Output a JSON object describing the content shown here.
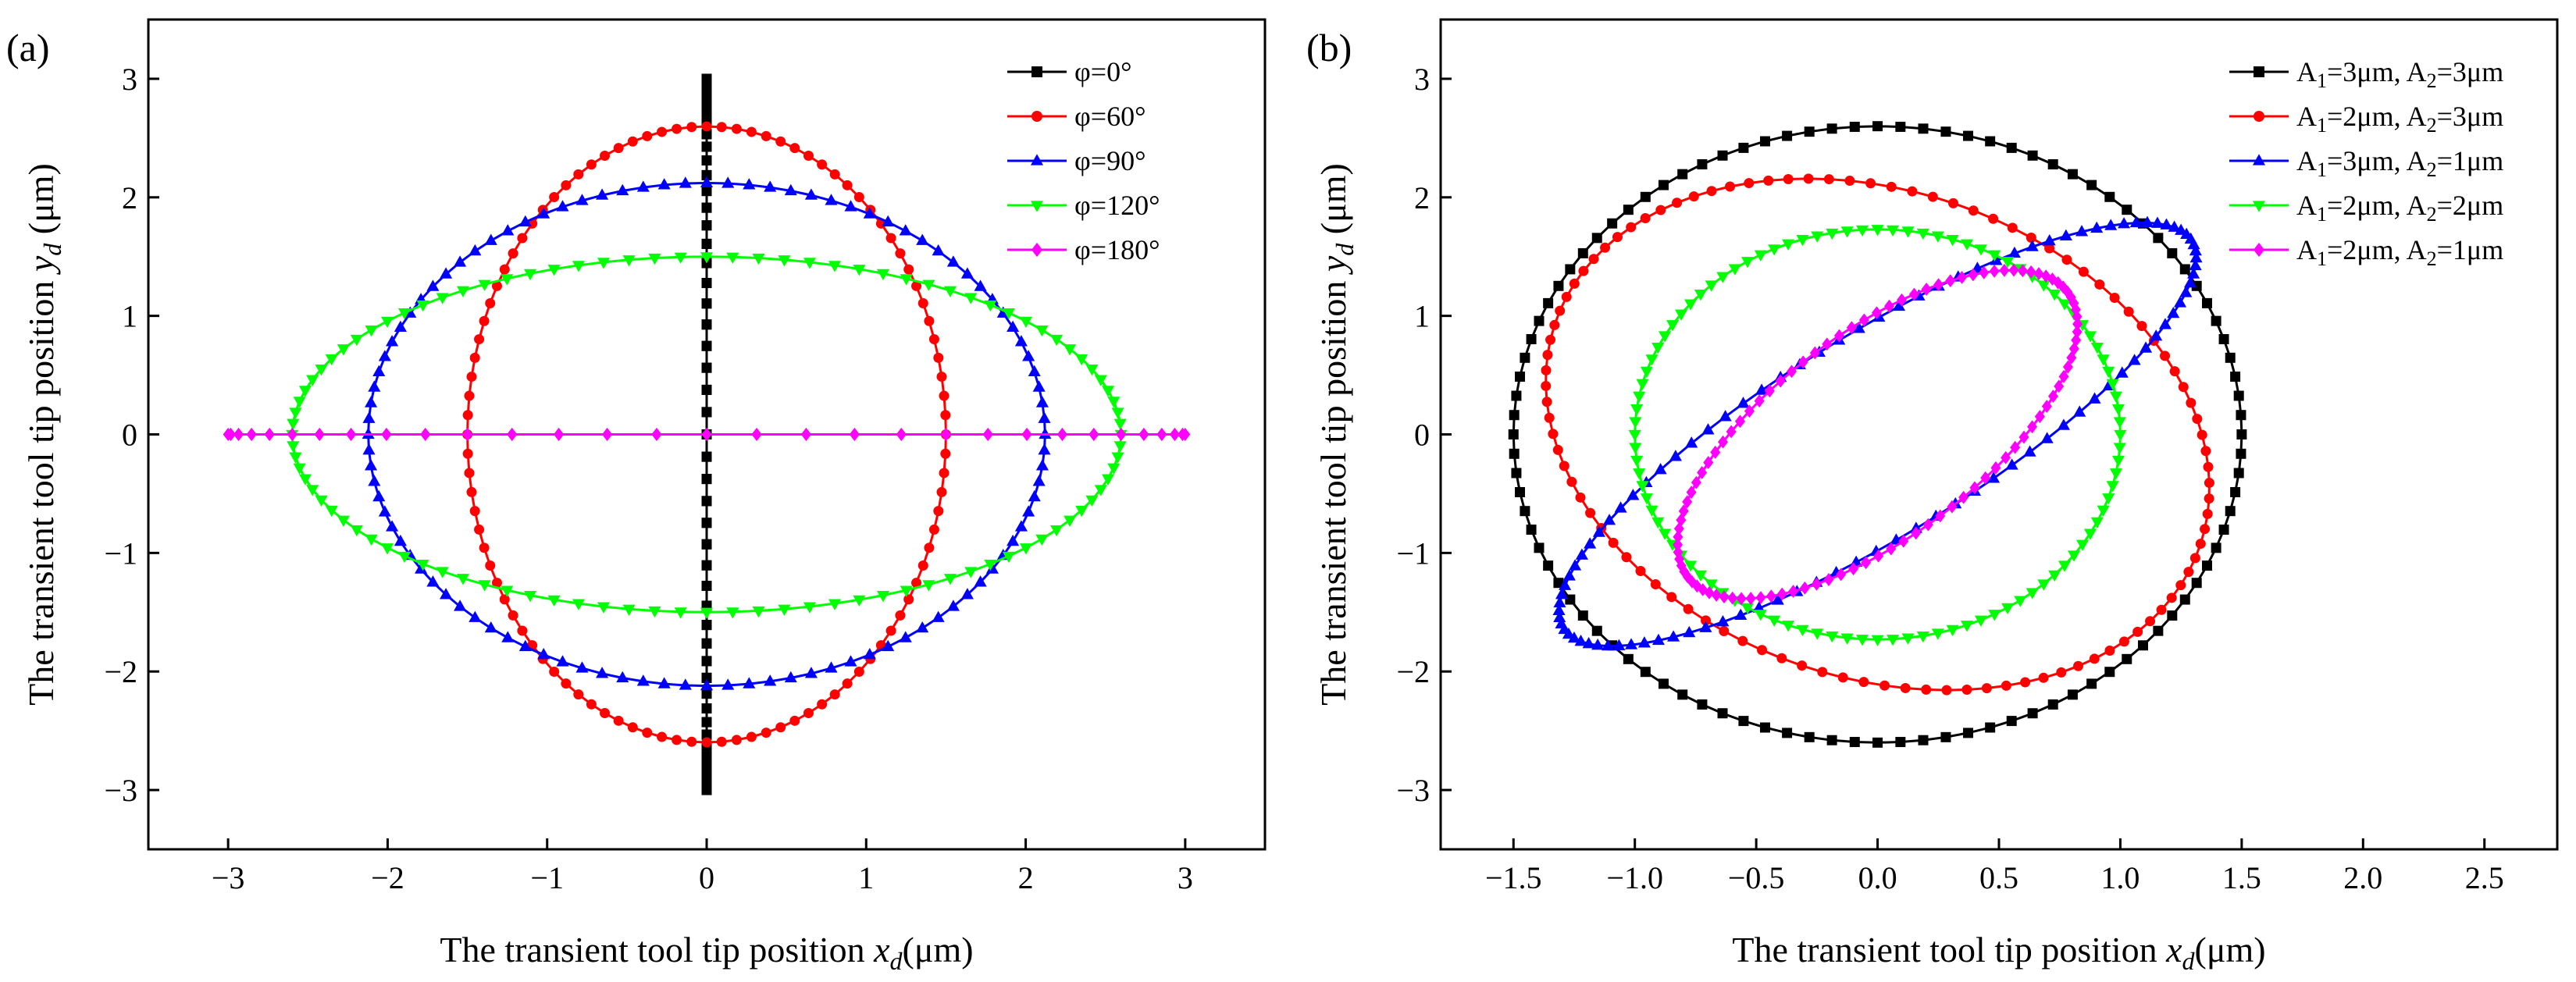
{
  "chart_data": [
    {
      "panel": "(a)",
      "type": "line",
      "xlabel_main": "The transient tool tip position ",
      "xlabel_var": "x",
      "xlabel_sub": "d",
      "xlabel_unit": "(μm)",
      "ylabel_main": "The transient tool tip position ",
      "ylabel_var": "y",
      "ylabel_sub": "d",
      "ylabel_unit": " (μm)",
      "xlim": [
        -3.5,
        3.5
      ],
      "ylim": [
        -3.5,
        3.5
      ],
      "xticks": [
        -3,
        -2,
        -1,
        0,
        1,
        2,
        3
      ],
      "xtick_labels": [
        "−3",
        "−2",
        "−1",
        "0",
        "1",
        "2",
        "3"
      ],
      "yticks": [
        -3,
        -2,
        -1,
        0,
        1,
        2,
        3
      ],
      "ytick_labels": [
        "−3",
        "−2",
        "−1",
        "0",
        "1",
        "2",
        "3"
      ],
      "legend_position": "top-right",
      "series": [
        {
          "name": "φ=0°",
          "color": "#000000",
          "marker": "square",
          "a1": 3,
          "a2": 3,
          "phase_deg": 0,
          "points": 100
        },
        {
          "name": "φ=60°",
          "color": "#ff0000",
          "marker": "circle",
          "a1": 3,
          "a2": 3,
          "phase_deg": 60,
          "points": 100
        },
        {
          "name": "φ=90°",
          "color": "#0000ff",
          "marker": "triangle-up",
          "a1": 3,
          "a2": 3,
          "phase_deg": 90,
          "points": 100
        },
        {
          "name": "φ=120°",
          "color": "#00ff00",
          "marker": "triangle-down",
          "a1": 3,
          "a2": 3,
          "phase_deg": 120,
          "points": 100
        },
        {
          "name": "φ=180°",
          "color": "#ff00ff",
          "marker": "diamond",
          "a1": 3,
          "a2": 3,
          "phase_deg": 180,
          "points": 60
        }
      ]
    },
    {
      "panel": "(b)",
      "type": "line",
      "xlabel_main": "The transient tool tip position ",
      "xlabel_var": "x",
      "xlabel_sub": "d",
      "xlabel_unit": "(μm)",
      "ylabel_main": "The transient tool tip position ",
      "ylabel_var": "y",
      "ylabel_sub": "d",
      "ylabel_unit": " (μm)",
      "xlim": [
        -1.8,
        2.8
      ],
      "ylim": [
        -3.5,
        3.5
      ],
      "xticks": [
        -1.5,
        -1.0,
        -0.5,
        0.0,
        0.5,
        1.0,
        1.5,
        2.0,
        2.5
      ],
      "xtick_labels": [
        "−1.5",
        "−1.0",
        "−0.5",
        "0.0",
        "0.5",
        "1.0",
        "1.5",
        "2.0",
        "2.5"
      ],
      "yticks": [
        -3,
        -2,
        -1,
        0,
        1,
        2,
        3
      ],
      "ytick_labels": [
        "−3",
        "−2",
        "−1",
        "0",
        "1",
        "2",
        "3"
      ],
      "legend_position": "top-right",
      "series": [
        {
          "name": [
            "A",
            "1",
            "=3μm, A",
            "2",
            "=3μm"
          ],
          "color": "#000000",
          "marker": "square",
          "cx": 0,
          "cy": 0,
          "ux": [
            0,
            1.5
          ],
          "uy": [
            2.6,
            0
          ],
          "points": 100
        },
        {
          "name": [
            "A",
            "1",
            "=2μm, A",
            "2",
            "=3μm"
          ],
          "color": "#ff0000",
          "marker": "circle",
          "cx": 0,
          "cy": 0,
          "ux": [
            -0.53,
            1.26
          ],
          "uy": [
            2.12,
            0.4
          ],
          "points": 100
        },
        {
          "name": [
            "A",
            "1",
            "=3μm, A",
            "2",
            "=1μm"
          ],
          "color": "#0000ff",
          "marker": "triangle-up",
          "cx": 0,
          "cy": 0,
          "ux": [
            1.25,
            0.4
          ],
          "uy": [
            1.72,
            -0.48
          ],
          "points": 100
        },
        {
          "name": [
            "A",
            "1",
            "=2μm, A",
            "2",
            "=2μm"
          ],
          "color": "#00ff00",
          "marker": "triangle-down",
          "cx": 0,
          "cy": 0,
          "ux": [
            0,
            1.0
          ],
          "uy": [
            1.73,
            0
          ],
          "points": 100
        },
        {
          "name": [
            "A",
            "1",
            "=2μm, A",
            "2",
            "=1μm"
          ],
          "color": "#ff00ff",
          "marker": "diamond",
          "cx": 0,
          "cy": 0,
          "ux": [
            0.72,
            0.4
          ],
          "uy": [
            1.31,
            -0.45
          ],
          "points": 100
        }
      ]
    }
  ]
}
